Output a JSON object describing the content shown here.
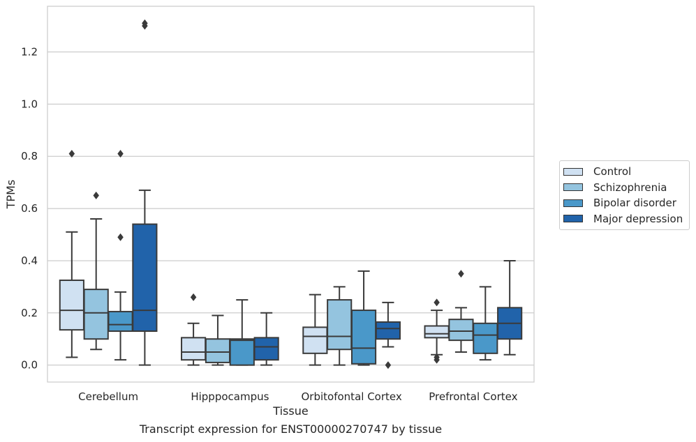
{
  "chart_data": {
    "type": "box",
    "title": "",
    "caption": "Transcript expression for ENST00000270747 by tissue",
    "xlabel": "Tissue",
    "ylabel": "TPMs",
    "ylim": [
      -0.065,
      1.375
    ],
    "yticks": [
      0.0,
      0.2,
      0.4,
      0.6,
      0.8,
      1.0,
      1.2
    ],
    "ytick_labels": [
      "0.0",
      "0.2",
      "0.4",
      "0.6",
      "0.8",
      "1.0",
      "1.2"
    ],
    "grid": "horizontal",
    "legend_position": "right",
    "categories": [
      "Cerebellum",
      "Hipppocampus",
      "Orbitofontal Cortex",
      "Prefrontal Cortex"
    ],
    "series": [
      {
        "name": "Control",
        "color": "#d0e1f2",
        "boxes": [
          {
            "whisker_low": 0.03,
            "q1": 0.135,
            "median": 0.21,
            "q3": 0.325,
            "whisker_high": 0.51,
            "outliers": [
              0.81
            ]
          },
          {
            "whisker_low": 0.0,
            "q1": 0.02,
            "median": 0.05,
            "q3": 0.105,
            "whisker_high": 0.16,
            "outliers": [
              0.26
            ]
          },
          {
            "whisker_low": 0.0,
            "q1": 0.045,
            "median": 0.11,
            "q3": 0.145,
            "whisker_high": 0.27,
            "outliers": []
          },
          {
            "whisker_low": 0.04,
            "q1": 0.105,
            "median": 0.12,
            "q3": 0.15,
            "whisker_high": 0.21,
            "outliers": [
              0.24,
              0.03,
              0.02
            ]
          }
        ]
      },
      {
        "name": "Schizophrenia",
        "color": "#94c4df",
        "boxes": [
          {
            "whisker_low": 0.06,
            "q1": 0.1,
            "median": 0.2,
            "q3": 0.29,
            "whisker_high": 0.56,
            "outliers": [
              0.65
            ]
          },
          {
            "whisker_low": 0.0,
            "q1": 0.01,
            "median": 0.05,
            "q3": 0.1,
            "whisker_high": 0.19,
            "outliers": []
          },
          {
            "whisker_low": 0.0,
            "q1": 0.06,
            "median": 0.11,
            "q3": 0.25,
            "whisker_high": 0.3,
            "outliers": []
          },
          {
            "whisker_low": 0.05,
            "q1": 0.095,
            "median": 0.13,
            "q3": 0.175,
            "whisker_high": 0.22,
            "outliers": [
              0.35
            ]
          }
        ]
      },
      {
        "name": "Bipolar disorder",
        "color": "#4a98c9",
        "boxes": [
          {
            "whisker_low": 0.02,
            "q1": 0.13,
            "median": 0.155,
            "q3": 0.205,
            "whisker_high": 0.28,
            "outliers": [
              0.81,
              0.49
            ]
          },
          {
            "whisker_low": 0.0,
            "q1": 0.0,
            "median": 0.095,
            "q3": 0.1,
            "whisker_high": 0.25,
            "outliers": []
          },
          {
            "whisker_low": 0.0,
            "q1": 0.005,
            "median": 0.065,
            "q3": 0.21,
            "whisker_high": 0.36,
            "outliers": []
          },
          {
            "whisker_low": 0.02,
            "q1": 0.045,
            "median": 0.115,
            "q3": 0.16,
            "whisker_high": 0.3,
            "outliers": []
          }
        ]
      },
      {
        "name": "Major depression",
        "color": "#2163aa",
        "boxes": [
          {
            "whisker_low": 0.0,
            "q1": 0.13,
            "median": 0.21,
            "q3": 0.54,
            "whisker_high": 0.67,
            "outliers": [
              1.31,
              1.3
            ]
          },
          {
            "whisker_low": 0.0,
            "q1": 0.02,
            "median": 0.07,
            "q3": 0.105,
            "whisker_high": 0.2,
            "outliers": []
          },
          {
            "whisker_low": 0.07,
            "q1": 0.1,
            "median": 0.14,
            "q3": 0.165,
            "whisker_high": 0.24,
            "outliers": [
              0.0
            ]
          },
          {
            "whisker_low": 0.04,
            "q1": 0.1,
            "median": 0.16,
            "q3": 0.22,
            "whisker_high": 0.4,
            "outliers": []
          }
        ]
      }
    ]
  }
}
